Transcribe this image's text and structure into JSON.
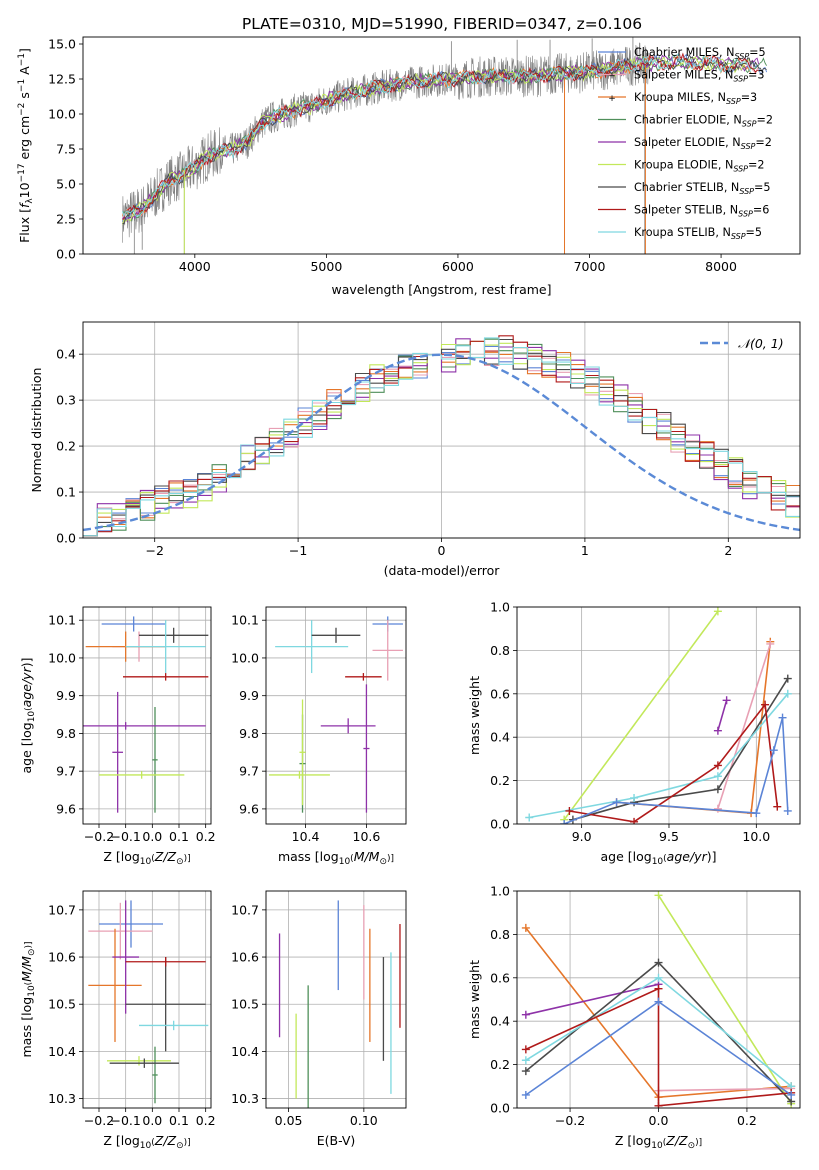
{
  "figure": {
    "title": "PLATE=0310, MJD=51990, FIBERID=0347, z=0.106"
  },
  "colors": {
    "Chabrier MILES": "#5b84d6",
    "Salpeter MILES": "#e8a0b4",
    "Kroupa MILES": "#e5762a",
    "Chabrier ELODIE": "#4f8f5a",
    "Salpeter ELODIE": "#8e32a8",
    "Kroupa ELODIE": "#c2e85a",
    "Chabrier STELIB": "#4a4a4a",
    "Salpeter STELIB": "#b01a1a",
    "Kroupa STELIB": "#7fd8e0",
    "data": "#808080",
    "normal": "#5b8ad6"
  },
  "chart_data": [
    {
      "id": "spectrum",
      "type": "line",
      "title": "PLATE=0310, MJD=51990, FIBERID=0347, z=0.106",
      "xlabel": "wavelength [Angstrom, rest frame]",
      "ylabel": "Flux [fλ10⁻¹⁷ erg cm⁻² s⁻¹ A⁻¹]",
      "xlim": [
        3150,
        8600
      ],
      "ylim": [
        0,
        15.5
      ],
      "xticks": [
        4000,
        5000,
        6000,
        7000,
        8000
      ],
      "yticks": [
        0.0,
        2.5,
        5.0,
        7.5,
        10.0,
        12.5,
        15.0
      ],
      "legend_position": "right",
      "legend": [
        "Chabrier MILES, N_SSP=5",
        "Salpeter MILES, N_SSP=3",
        "Kroupa MILES, N_SSP=3",
        "Chabrier ELODIE, N_SSP=2",
        "Salpeter ELODIE, N_SSP=2",
        "Kroupa ELODIE, N_SSP=2",
        "Chabrier STELIB, N_SSP=5",
        "Salpeter STELIB, N_SSP=6",
        "Kroupa STELIB, N_SSP=5"
      ],
      "legend_labels": [
        {
          "pre": "Chabrier MILES, N",
          "sub": "SSP",
          "post": "=5"
        },
        {
          "pre": "Salpeter MILES, N",
          "sub": "SSP",
          "post": "=3"
        },
        {
          "pre": "Kroupa MILES, N",
          "sub": "SSP",
          "post": "=3"
        },
        {
          "pre": "Chabrier ELODIE, N",
          "sub": "SSP",
          "post": "=2"
        },
        {
          "pre": "Salpeter ELODIE, N",
          "sub": "SSP",
          "post": "=2"
        },
        {
          "pre": "Kroupa ELODIE, N",
          "sub": "SSP",
          "post": "=2"
        },
        {
          "pre": "Chabrier STELIB, N",
          "sub": "SSP",
          "post": "=5"
        },
        {
          "pre": "Salpeter STELIB, N",
          "sub": "SSP",
          "post": "=6"
        },
        {
          "pre": "Kroupa STELIB, N",
          "sub": "SSP",
          "post": "=5"
        }
      ],
      "legend_colors": [
        "#5b84d6",
        "#e8a0b4",
        "#e5762a",
        "#4f8f5a",
        "#8e32a8",
        "#c2e85a",
        "#4a4a4a",
        "#b01a1a",
        "#7fd8e0"
      ],
      "continuum": [
        [
          3450,
          2.6
        ],
        [
          3600,
          3.2
        ],
        [
          3700,
          4.2
        ],
        [
          3800,
          5.2
        ],
        [
          3900,
          5.6
        ],
        [
          4000,
          6.2
        ],
        [
          4100,
          7.0
        ],
        [
          4200,
          7.3
        ],
        [
          4300,
          7.5
        ],
        [
          4400,
          8.0
        ],
        [
          4500,
          9.3
        ],
        [
          4600,
          9.8
        ],
        [
          4700,
          10.1
        ],
        [
          4800,
          10.4
        ],
        [
          4900,
          10.6
        ],
        [
          5000,
          11.0
        ],
        [
          5200,
          11.5
        ],
        [
          5400,
          11.9
        ],
        [
          5600,
          12.2
        ],
        [
          5800,
          12.4
        ],
        [
          6000,
          12.5
        ],
        [
          6200,
          12.7
        ],
        [
          6400,
          12.7
        ],
        [
          6600,
          12.7
        ],
        [
          6800,
          12.9
        ],
        [
          7000,
          13.0
        ],
        [
          7200,
          13.3
        ],
        [
          7400,
          13.6
        ],
        [
          7600,
          13.7
        ],
        [
          7800,
          13.7
        ],
        [
          8000,
          13.5
        ],
        [
          8200,
          13.5
        ],
        [
          8350,
          13.4
        ]
      ],
      "data_range": [
        3450,
        7450
      ],
      "data_spikes": [
        [
          3540,
          0.0
        ],
        [
          3600,
          0.3
        ],
        [
          3920,
          0.0
        ],
        [
          6810,
          0.0
        ],
        [
          7420,
          0.0
        ],
        [
          5950,
          15.2
        ],
        [
          6450,
          15.3
        ],
        [
          7020,
          15.4
        ],
        [
          7330,
          15.5
        ],
        [
          6700,
          15.3
        ]
      ]
    },
    {
      "id": "residuals",
      "type": "histogram",
      "xlabel": "(data-model)/error",
      "ylabel": "Normed distribution",
      "xlim": [
        -2.5,
        2.5
      ],
      "ylim": [
        0,
        0.47
      ],
      "xticks": [
        -2,
        -1,
        0,
        1,
        2
      ],
      "yticks": [
        0.0,
        0.1,
        0.2,
        0.3,
        0.4
      ],
      "legend": "N(0,1)",
      "legend_position": "top-right",
      "bin_width": 0.1,
      "base": [
        0.03,
        0.04,
        0.05,
        0.06,
        0.07,
        0.08,
        0.09,
        0.1,
        0.11,
        0.13,
        0.15,
        0.17,
        0.19,
        0.21,
        0.23,
        0.25,
        0.27,
        0.29,
        0.31,
        0.33,
        0.35,
        0.36,
        0.37,
        0.38,
        0.39,
        0.39,
        0.4,
        0.4,
        0.41,
        0.41,
        0.4,
        0.39,
        0.38,
        0.37,
        0.36,
        0.34,
        0.32,
        0.3,
        0.28,
        0.26,
        0.24,
        0.22,
        0.2,
        0.18,
        0.16,
        0.14,
        0.12,
        0.1,
        0.09,
        0.08,
        0.07
      ]
    },
    {
      "id": "age_vs_Z",
      "type": "errorbar",
      "xlabel": "Z [log10(Z/Z☉)]",
      "ylabel": "age [log10(age/yr)]",
      "xlim": [
        -0.26,
        0.22
      ],
      "ylim": [
        9.56,
        10.135
      ],
      "xticks": [
        -0.2,
        -0.1,
        0.0,
        0.1,
        0.2
      ],
      "yticks": [
        9.6,
        9.7,
        9.8,
        9.9,
        10.0,
        10.1
      ],
      "points": [
        {
          "model": "Chabrier MILES",
          "x": -0.07,
          "xe": 0.12,
          "y": 10.09,
          "ye": 0.02
        },
        {
          "model": "Salpeter MILES",
          "x": -0.05,
          "xe": 0.1,
          "y": 10.03,
          "ye": 0.04
        },
        {
          "model": "Kroupa MILES",
          "x": -0.1,
          "xe": 0.15,
          "y": 10.03,
          "ye": 0.04
        },
        {
          "model": "Chabrier ELODIE",
          "x": 0.01,
          "xe": 0.01,
          "y": 9.73,
          "ye": 0.14
        },
        {
          "model": "Salpeter ELODIE",
          "x": -0.13,
          "xe": 0.02,
          "y": 9.75,
          "ye": 0.16
        },
        {
          "model": "Kroupa ELODIE",
          "x": -0.04,
          "xe": 0.16,
          "y": 9.69,
          "ye": 0.01
        },
        {
          "model": "Chabrier STELIB",
          "x": 0.08,
          "xe": 0.13,
          "y": 10.06,
          "ye": 0.02
        },
        {
          "model": "Salpeter STELIB",
          "x": 0.05,
          "xe": 0.16,
          "y": 9.95,
          "ye": 0.01
        },
        {
          "model": "Salpeter ELODIE",
          "x": -0.1,
          "xe": 0.3,
          "y": 9.82,
          "ye": 0.01
        },
        {
          "model": "Kroupa STELIB",
          "x": 0.05,
          "xe": 0.15,
          "y": 10.03,
          "ye": 0.07
        }
      ]
    },
    {
      "id": "age_vs_mass",
      "type": "errorbar",
      "xlabel": "mass [log10(M/M☉)]",
      "ylabel": "",
      "xlim": [
        10.27,
        10.73
      ],
      "ylim": [
        9.56,
        10.135
      ],
      "xticks": [
        10.4,
        10.6
      ],
      "yticks": [
        9.6,
        9.7,
        9.8,
        9.9,
        10.0,
        10.1
      ],
      "points": [
        {
          "model": "Chabrier MILES",
          "x": 10.67,
          "xe": 0.05,
          "y": 10.09,
          "ye": 0.02
        },
        {
          "model": "Salpeter MILES",
          "x": 10.67,
          "xe": 0.05,
          "y": 10.02,
          "ye": 0.08
        },
        {
          "model": "Kroupa STELIB",
          "x": 10.42,
          "xe": 0.12,
          "y": 10.03,
          "ye": 0.07
        },
        {
          "model": "Chabrier ELODIE",
          "x": 10.39,
          "xe": 0.01,
          "y": 9.72,
          "ye": 0.13
        },
        {
          "model": "Salpeter ELODIE",
          "x": 10.54,
          "xe": 0.09,
          "y": 9.82,
          "ye": 0.02
        },
        {
          "model": "Salpeter ELODIE",
          "x": 10.6,
          "xe": 0.01,
          "y": 9.76,
          "ye": 0.17
        },
        {
          "model": "Kroupa ELODIE",
          "x": 10.38,
          "xe": 0.1,
          "y": 9.69,
          "ye": 0.01
        },
        {
          "model": "Chabrier STELIB",
          "x": 10.5,
          "xe": 0.08,
          "y": 10.06,
          "ye": 0.02
        },
        {
          "model": "Salpeter STELIB",
          "x": 10.59,
          "xe": 0.06,
          "y": 9.95,
          "ye": 0.01
        },
        {
          "model": "Kroupa ELODIE",
          "x": 10.39,
          "xe": 0.01,
          "y": 9.75,
          "ye": 0.14
        }
      ]
    },
    {
      "id": "massweight_vs_age",
      "type": "line",
      "xlabel": "age [log10(age/yr)]",
      "ylabel": "mass weight",
      "xlim": [
        8.63,
        10.25
      ],
      "ylim": [
        0,
        1.0
      ],
      "xticks": [
        9.0,
        9.5,
        10.0
      ],
      "yticks": [
        0.0,
        0.2,
        0.4,
        0.6,
        0.8,
        1.0
      ],
      "series": [
        {
          "model": "Kroupa ELODIE",
          "x": [
            8.9,
            9.78
          ],
          "y": [
            0.02,
            0.98
          ]
        },
        {
          "model": "Salpeter ELODIE",
          "x": [
            9.78,
            9.83
          ],
          "y": [
            0.43,
            0.57
          ]
        },
        {
          "model": "Kroupa MILES",
          "x": [
            9.2,
            9.97,
            10.08
          ],
          "y": [
            0.1,
            0.05,
            0.84
          ]
        },
        {
          "model": "Salpeter MILES",
          "x": [
            9.78,
            10.08
          ],
          "y": [
            0.07,
            0.83
          ]
        },
        {
          "model": "Chabrier STELIB",
          "x": [
            8.95,
            9.3,
            9.78,
            10.18
          ],
          "y": [
            0.02,
            0.1,
            0.16,
            0.67
          ]
        },
        {
          "model": "Kroupa STELIB",
          "x": [
            8.7,
            9.3,
            9.78,
            10.18
          ],
          "y": [
            0.03,
            0.12,
            0.22,
            0.6
          ]
        },
        {
          "model": "Salpeter STELIB",
          "x": [
            8.93,
            9.3,
            9.78,
            10.05,
            10.12
          ],
          "y": [
            0.06,
            0.01,
            0.27,
            0.55,
            0.08
          ]
        },
        {
          "model": "Chabrier MILES",
          "x": [
            8.9,
            9.2,
            10.0,
            10.1,
            10.15,
            10.18
          ],
          "y": [
            0.0,
            0.1,
            0.05,
            0.34,
            0.49,
            0.06
          ]
        }
      ]
    },
    {
      "id": "mass_vs_Z",
      "type": "errorbar",
      "xlabel": "Z [log10(Z/Z☉)]",
      "ylabel": "mass [log10(M/M☉)]",
      "xlim": [
        -0.26,
        0.22
      ],
      "ylim": [
        10.28,
        10.74
      ],
      "xticks": [
        -0.2,
        -0.1,
        0.0,
        0.1,
        0.2
      ],
      "yticks": [
        10.3,
        10.4,
        10.5,
        10.6,
        10.7
      ],
      "points": [
        {
          "model": "Chabrier MILES",
          "x": -0.08,
          "xe": 0.12,
          "y": 10.67,
          "ye": 0.05
        },
        {
          "model": "Salpeter MILES",
          "x": -0.12,
          "xe": 0.12,
          "y": 10.655,
          "ye": 0.06
        },
        {
          "model": "Kroupa MILES",
          "x": -0.14,
          "xe": 0.1,
          "y": 10.54,
          "ye": 0.12
        },
        {
          "model": "Salpeter ELODIE",
          "x": -0.1,
          "xe": 0.05,
          "y": 10.6,
          "ye": 0.12
        },
        {
          "model": "Kroupa ELODIE",
          "x": -0.05,
          "xe": 0.12,
          "y": 10.38,
          "ye": 0.01
        },
        {
          "model": "Chabrier ELODIE",
          "x": 0.01,
          "xe": 0.01,
          "y": 10.35,
          "ye": 0.06
        },
        {
          "model": "Chabrier STELIB",
          "x": 0.05,
          "xe": 0.15,
          "y": 10.5,
          "ye": 0.1
        },
        {
          "model": "Salpeter STELIB",
          "x": 0.05,
          "xe": 0.15,
          "y": 10.59,
          "ye": 0.01
        },
        {
          "model": "Kroupa STELIB",
          "x": 0.08,
          "xe": 0.13,
          "y": 10.455,
          "ye": 0.01
        },
        {
          "model": "Chabrier STELIB",
          "x": -0.03,
          "xe": 0.13,
          "y": 10.375,
          "ye": 0.01
        }
      ]
    },
    {
      "id": "mass_vs_EBV",
      "type": "errorbar",
      "xlabel": "E(B-V)",
      "ylabel": "",
      "xlim": [
        0.035,
        0.128
      ],
      "ylim": [
        10.28,
        10.74
      ],
      "xticks": [
        0.05,
        0.1
      ],
      "yticks": [
        10.3,
        10.4,
        10.5,
        10.6,
        10.7
      ],
      "points": [
        {
          "model": "Salpeter ELODIE",
          "x": 0.044,
          "ye": 0.11,
          "y": 10.54
        },
        {
          "model": "Kroupa ELODIE",
          "x": 0.055,
          "ye": 0.09,
          "y": 10.39
        },
        {
          "model": "Chabrier ELODIE",
          "x": 0.063,
          "ye": 0.13,
          "y": 10.41
        },
        {
          "model": "Chabrier MILES",
          "x": 0.083,
          "ye": 0.095,
          "y": 10.625
        },
        {
          "model": "Salpeter MILES",
          "x": 0.1,
          "ye": 0.1,
          "y": 10.61
        },
        {
          "model": "Kroupa MILES",
          "x": 0.104,
          "ye": 0.12,
          "y": 10.54
        },
        {
          "model": "Chabrier STELIB",
          "x": 0.113,
          "ye": 0.11,
          "y": 10.49
        },
        {
          "model": "Kroupa STELIB",
          "x": 0.118,
          "ye": 0.15,
          "y": 10.46
        },
        {
          "model": "Salpeter STELIB",
          "x": 0.124,
          "ye": 0.11,
          "y": 10.56
        }
      ]
    },
    {
      "id": "massweight_vs_Z",
      "type": "line",
      "xlabel": "Z [log10(Z/Z☉)]",
      "ylabel": "mass weight",
      "xlim": [
        -0.32,
        0.32
      ],
      "ylim": [
        0,
        1.0
      ],
      "xticks": [
        -0.2,
        0.0,
        0.2
      ],
      "yticks": [
        0.0,
        0.2,
        0.4,
        0.6,
        0.8,
        1.0
      ],
      "series": [
        {
          "model": "Kroupa ELODIE",
          "x": [
            0.0,
            0.3
          ],
          "y": [
            0.98,
            0.02
          ]
        },
        {
          "model": "Kroupa MILES",
          "x": [
            -0.3,
            0.0,
            0.3
          ],
          "y": [
            0.83,
            0.05,
            0.1
          ]
        },
        {
          "model": "Salpeter MILES",
          "x": [
            0.0,
            0.3
          ],
          "y": [
            0.08,
            0.09
          ]
        },
        {
          "model": "Salpeter ELODIE",
          "x": [
            -0.3,
            0.0
          ],
          "y": [
            0.43,
            0.57
          ]
        },
        {
          "model": "Chabrier STELIB",
          "x": [
            -0.3,
            0.0,
            0.3
          ],
          "y": [
            0.17,
            0.67,
            0.03
          ]
        },
        {
          "model": "Kroupa STELIB",
          "x": [
            -0.3,
            0.0,
            0.3
          ],
          "y": [
            0.22,
            0.6,
            0.1
          ]
        },
        {
          "model": "Salpeter STELIB",
          "x": [
            -0.3,
            0.0,
            0.0,
            0.3
          ],
          "y": [
            0.27,
            0.55,
            0.01,
            0.07
          ]
        },
        {
          "model": "Chabrier MILES",
          "x": [
            -0.3,
            0.0,
            0.3
          ],
          "y": [
            0.06,
            0.49,
            0.06
          ]
        }
      ]
    }
  ]
}
